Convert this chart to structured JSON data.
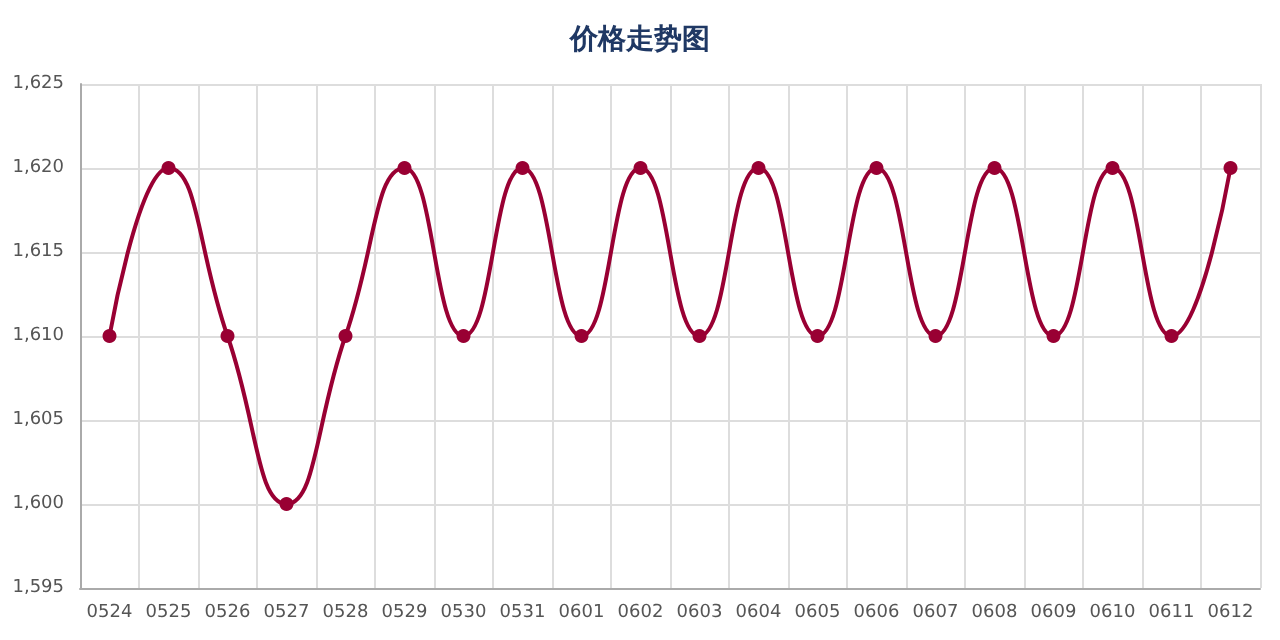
{
  "chart_data": {
    "type": "line",
    "title": "价格走势图",
    "categories": [
      "0524",
      "0525",
      "0526",
      "0527",
      "0528",
      "0529",
      "0530",
      "0531",
      "0601",
      "0602",
      "0603",
      "0604",
      "0605",
      "0606",
      "0607",
      "0608",
      "0609",
      "0610",
      "0611",
      "0612"
    ],
    "series": [
      {
        "color": "#990033",
        "values": [
          1610,
          1620,
          1610,
          1600,
          1610,
          1620,
          1610,
          1620,
          1610,
          1620,
          1610,
          1620,
          1610,
          1620,
          1610,
          1620,
          1610,
          1620,
          1610,
          1620
        ]
      }
    ],
    "ylim": [
      1595,
      1625
    ],
    "yticks": [
      {
        "value": 1595,
        "label": "1,595"
      },
      {
        "value": 1600,
        "label": "1,600"
      },
      {
        "value": 1605,
        "label": "1,605"
      },
      {
        "value": 1610,
        "label": "1,610"
      },
      {
        "value": 1615,
        "label": "1,615"
      },
      {
        "value": 1620,
        "label": "1,620"
      },
      {
        "value": 1625,
        "label": "1,625"
      }
    ],
    "grid": true,
    "marker": "circle",
    "line_style": "solid"
  }
}
